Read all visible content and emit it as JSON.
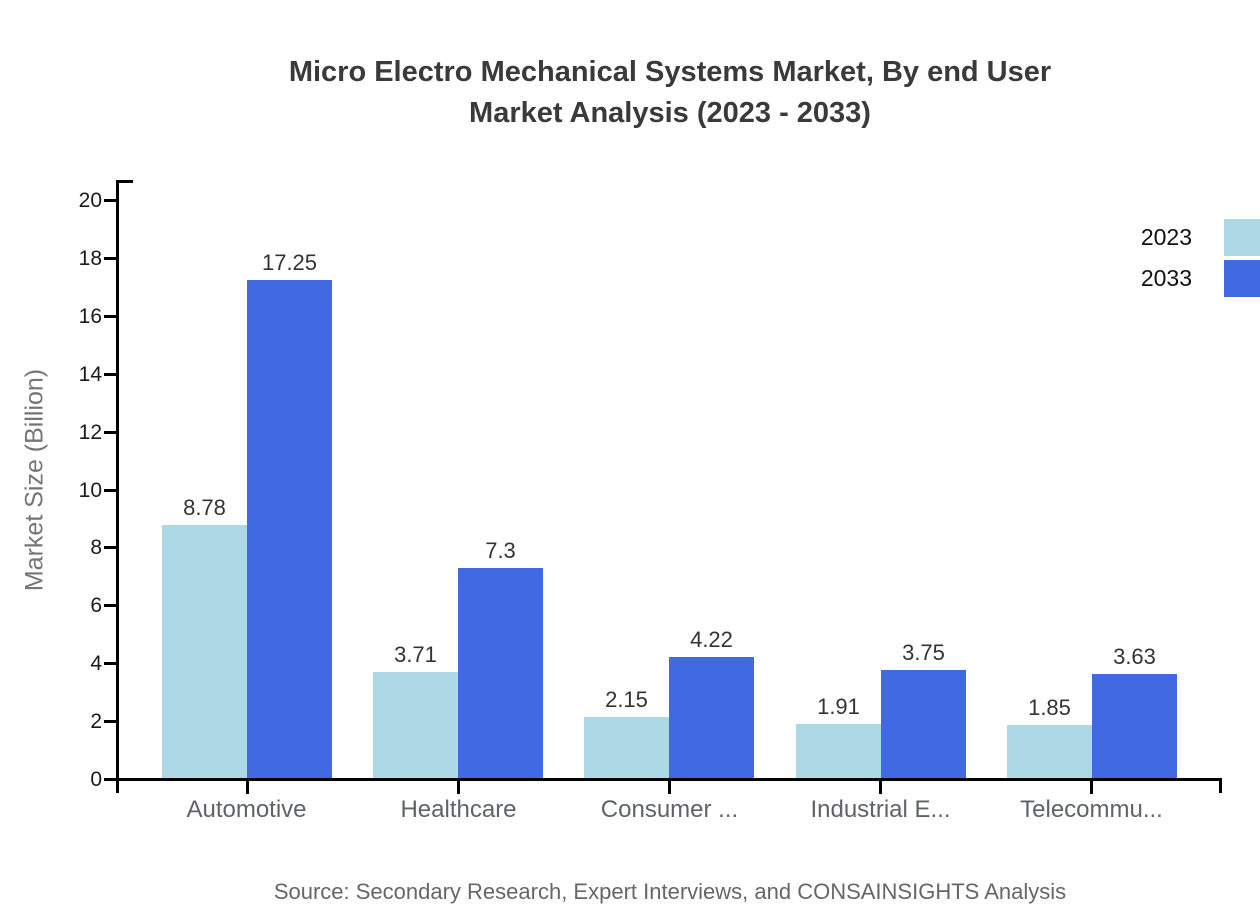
{
  "chart_data": {
    "type": "bar",
    "title": "Micro Electro Mechanical Systems Market, By end User Market Analysis (2023 - 2033)",
    "title_lines": [
      "Micro Electro Mechanical Systems Market, By end User",
      "Market Analysis (2023 - 2033)"
    ],
    "categories": [
      "Automotive",
      "Healthcare",
      "Consumer ...",
      "Industrial E...",
      "Telecommu..."
    ],
    "series": [
      {
        "name": "2023",
        "color": "#ADD8E6",
        "values": [
          8.78,
          3.71,
          2.15,
          1.91,
          1.85
        ]
      },
      {
        "name": "2033",
        "color": "#4169E1",
        "values": [
          17.25,
          7.3,
          4.22,
          3.75,
          3.63
        ]
      }
    ],
    "xlabel": "",
    "ylabel": "Market Size (Billion)",
    "ylim": [
      0,
      20
    ],
    "ytick_step": 2,
    "yticks": [
      0,
      2,
      4,
      6,
      8,
      10,
      12,
      14,
      16,
      18,
      20
    ],
    "grid": false,
    "bar_value_labels": true,
    "legend_position": "top-right"
  },
  "source_note": "Source: Secondary Research, Expert Interviews, and CONSAINSIGHTS Analysis",
  "colors": {
    "series_2023": "#ADD8E6",
    "series_2033": "#4169E1",
    "title_text": "#3A3A3A",
    "axis": "#000000",
    "tick_label": "#1A1A1A",
    "category_label": "#5F6368",
    "value_label": "#333333",
    "axis_title": "#757575",
    "source_text": "#666666",
    "background": "#FFFFFF"
  }
}
